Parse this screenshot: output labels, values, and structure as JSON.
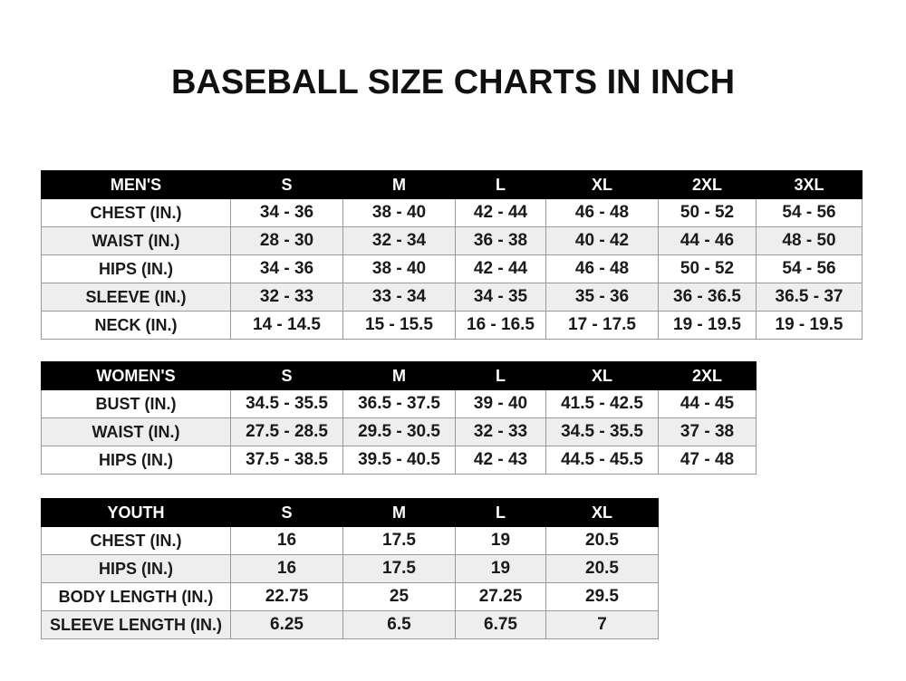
{
  "title": "BASEBALL SIZE CHARTS IN INCH",
  "tables": {
    "men": {
      "header": [
        "MEN'S",
        "S",
        "M",
        "L",
        "XL",
        "2XL",
        "3XL"
      ],
      "rows": [
        [
          "CHEST (IN.)",
          "34 - 36",
          "38 - 40",
          "42 - 44",
          "46 - 48",
          "50 - 52",
          "54 - 56"
        ],
        [
          "WAIST (IN.)",
          "28 - 30",
          "32 - 34",
          "36 - 38",
          "40 - 42",
          "44 - 46",
          "48 - 50"
        ],
        [
          "HIPS (IN.)",
          "34 - 36",
          "38 - 40",
          "42 - 44",
          "46 - 48",
          "50 - 52",
          "54 - 56"
        ],
        [
          "SLEEVE (IN.)",
          "32 - 33",
          "33 - 34",
          "34 - 35",
          "35 - 36",
          "36 - 36.5",
          "36.5 - 37"
        ],
        [
          "NECK (IN.)",
          "14 - 14.5",
          "15 - 15.5",
          "16 - 16.5",
          "17 - 17.5",
          "19 - 19.5",
          "19 - 19.5"
        ]
      ]
    },
    "women": {
      "header": [
        "WOMEN'S",
        "S",
        "M",
        "L",
        "XL",
        "2XL"
      ],
      "rows": [
        [
          "BUST (IN.)",
          "34.5 - 35.5",
          "36.5 - 37.5",
          "39 - 40",
          "41.5 - 42.5",
          "44 - 45"
        ],
        [
          "WAIST (IN.)",
          "27.5 - 28.5",
          "29.5 - 30.5",
          "32 - 33",
          "34.5 - 35.5",
          "37 - 38"
        ],
        [
          "HIPS (IN.)",
          "37.5 - 38.5",
          "39.5 - 40.5",
          "42 - 43",
          "44.5 - 45.5",
          "47 - 48"
        ]
      ]
    },
    "youth": {
      "header": [
        "YOUTH",
        "S",
        "M",
        "L",
        "XL"
      ],
      "rows": [
        [
          "CHEST (IN.)",
          "16",
          "17.5",
          "19",
          "20.5"
        ],
        [
          "HIPS (IN.)",
          "16",
          "17.5",
          "19",
          "20.5"
        ],
        [
          "BODY LENGTH (IN.)",
          "22.75",
          "25",
          "27.25",
          "29.5"
        ],
        [
          "SLEEVE LENGTH (IN.)",
          "6.25",
          "6.5",
          "6.75",
          "7"
        ]
      ]
    }
  },
  "colors": {
    "header_bg": "#000000",
    "header_text": "#ffffff",
    "alt_row": "#eeeeee"
  }
}
